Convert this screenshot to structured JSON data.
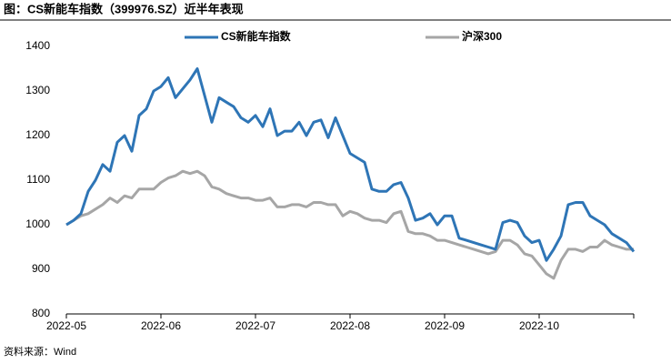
{
  "chart_data": {
    "type": "line",
    "title": "图：CS新能车指数（399976.SZ）近半年表现",
    "source": "资料来源：Wind",
    "categories": [
      "2022-05",
      null,
      null,
      null,
      null,
      null,
      null,
      null,
      null,
      null,
      null,
      null,
      null,
      "2022-06",
      null,
      null,
      null,
      null,
      null,
      null,
      null,
      null,
      null,
      null,
      null,
      null,
      "2022-07",
      null,
      null,
      null,
      null,
      null,
      null,
      null,
      null,
      null,
      null,
      null,
      null,
      "2022-08",
      null,
      null,
      null,
      null,
      null,
      null,
      null,
      null,
      null,
      null,
      null,
      null,
      "2022-09",
      null,
      null,
      null,
      null,
      null,
      null,
      null,
      null,
      null,
      null,
      null,
      null,
      "2022-10",
      null,
      null,
      null,
      null,
      null,
      null,
      null,
      null,
      null,
      null,
      null,
      null,
      null
    ],
    "series": [
      {
        "name": "CS新能车指数",
        "color": "#2e75b6",
        "values": [
          1000,
          1010,
          1025,
          1075,
          1100,
          1135,
          1120,
          1185,
          1200,
          1165,
          1245,
          1260,
          1300,
          1310,
          1330,
          1285,
          1305,
          1325,
          1350,
          1290,
          1230,
          1285,
          1275,
          1265,
          1240,
          1230,
          1245,
          1220,
          1260,
          1200,
          1210,
          1210,
          1230,
          1200,
          1230,
          1235,
          1195,
          1240,
          1200,
          1160,
          1150,
          1140,
          1080,
          1075,
          1075,
          1090,
          1095,
          1060,
          1010,
          1015,
          1025,
          1000,
          1020,
          1020,
          970,
          965,
          960,
          955,
          950,
          945,
          1005,
          1010,
          1005,
          975,
          960,
          965,
          920,
          945,
          975,
          1045,
          1050,
          1050,
          1020,
          1010,
          1000,
          980,
          970,
          960,
          940
        ]
      },
      {
        "name": "沪深300",
        "color": "#a6a6a6",
        "values": [
          1000,
          1010,
          1020,
          1025,
          1035,
          1045,
          1060,
          1050,
          1065,
          1060,
          1080,
          1080,
          1080,
          1095,
          1105,
          1110,
          1120,
          1115,
          1120,
          1110,
          1085,
          1080,
          1070,
          1065,
          1060,
          1060,
          1055,
          1055,
          1060,
          1040,
          1040,
          1045,
          1045,
          1040,
          1050,
          1050,
          1045,
          1045,
          1020,
          1030,
          1025,
          1015,
          1010,
          1010,
          1005,
          1025,
          1030,
          985,
          980,
          980,
          975,
          965,
          965,
          960,
          955,
          950,
          945,
          940,
          935,
          940,
          965,
          965,
          955,
          935,
          930,
          910,
          890,
          880,
          920,
          945,
          945,
          940,
          950,
          950,
          965,
          955,
          950,
          945,
          945
        ]
      }
    ],
    "ylim": [
      800,
      1400
    ],
    "yticks": [
      800,
      900,
      1000,
      1100,
      1200,
      1300,
      1400
    ],
    "grid": false
  }
}
